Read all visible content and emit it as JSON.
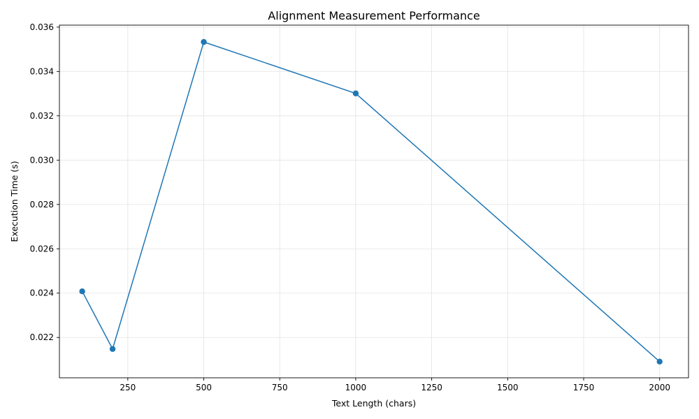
{
  "chart_data": {
    "type": "line",
    "title": "Alignment Measurement Performance",
    "xlabel": "Text Length (chars)",
    "ylabel": "Execution Time (s)",
    "xlim": [
      25,
      2095
    ],
    "ylim": [
      0.02018,
      0.03609
    ],
    "xticks": [
      250,
      500,
      750,
      1000,
      1250,
      1500,
      1750,
      2000
    ],
    "yticks": [
      0.022,
      0.024,
      0.026,
      0.028,
      0.03,
      0.032,
      0.034,
      0.036
    ],
    "ytick_labels": [
      "0.022",
      "0.024",
      "0.026",
      "0.028",
      "0.030",
      "0.032",
      "0.034",
      "0.036"
    ],
    "grid": true,
    "series": [
      {
        "color": "#1f77b4",
        "marker": "circle",
        "x": [
          100,
          200,
          500,
          1000,
          2000
        ],
        "y": [
          0.02408,
          0.02148,
          0.03533,
          0.03301,
          0.02091
        ]
      }
    ]
  }
}
